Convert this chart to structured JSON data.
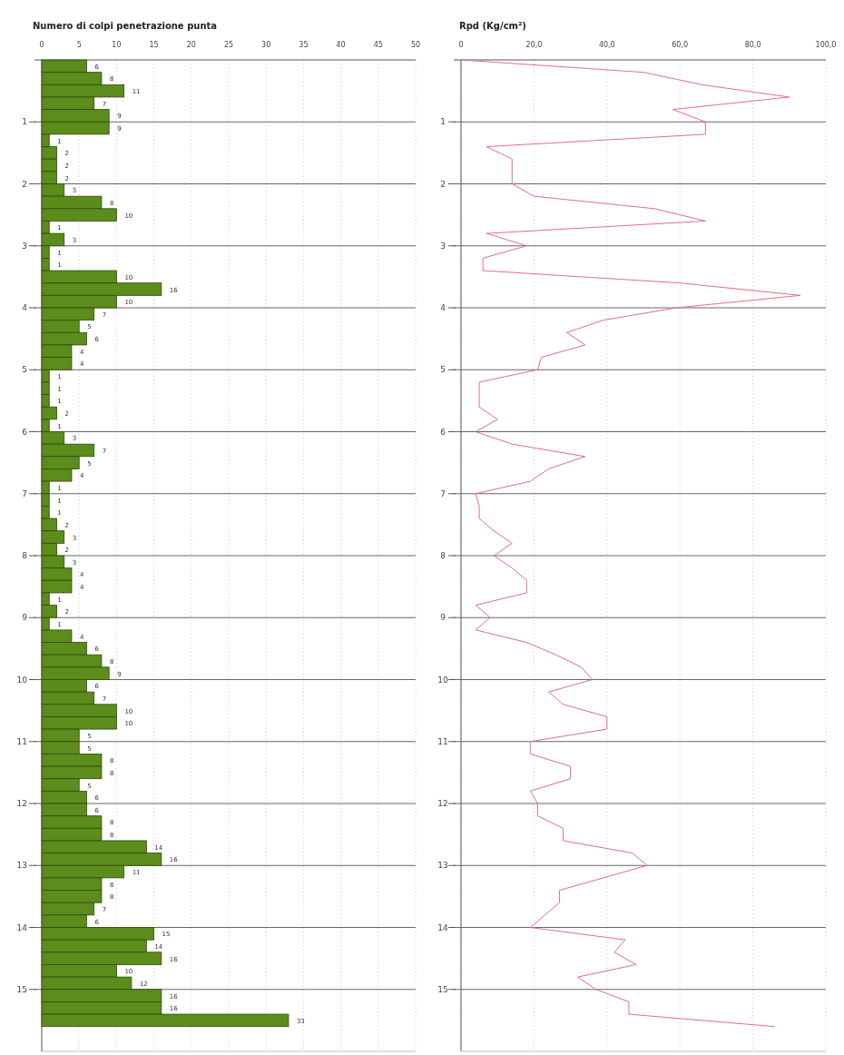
{
  "chart_data": [
    {
      "type": "bar",
      "orientation": "horizontal",
      "title": "Numero di colpi penetrazione punta",
      "x": [
        0.1,
        0.3,
        0.5,
        0.7,
        0.9,
        1.1,
        1.3,
        1.5,
        1.7,
        1.9,
        2.1,
        2.3,
        2.5,
        2.7,
        2.9,
        3.1,
        3.3,
        3.5,
        3.7,
        3.9,
        4.1,
        4.3,
        4.5,
        4.7,
        4.9,
        5.1,
        5.3,
        5.5,
        5.7,
        5.9,
        6.1,
        6.3,
        6.5,
        6.7,
        6.9,
        7.1,
        7.3,
        7.5,
        7.7,
        7.9,
        8.1,
        8.3,
        8.5,
        8.7,
        8.9,
        9.1,
        9.3,
        9.5,
        9.7,
        9.9,
        10.1,
        10.3,
        10.5,
        10.7,
        10.9,
        11.1,
        11.3,
        11.5,
        11.7,
        11.9,
        12.1,
        12.3,
        12.5,
        12.7,
        12.9,
        13.1,
        13.3,
        13.5,
        13.7,
        13.9,
        14.1,
        14.3,
        14.5,
        14.7,
        14.9,
        15.1,
        15.3,
        15.5
      ],
      "values": [
        6,
        8,
        11,
        7,
        9,
        9,
        1,
        2,
        2,
        2,
        3,
        8,
        10,
        1,
        3,
        1,
        1,
        10,
        16,
        10,
        7,
        5,
        6,
        4,
        4,
        1,
        1,
        1,
        2,
        1,
        3,
        7,
        5,
        4,
        1,
        1,
        1,
        2,
        3,
        2,
        3,
        4,
        4,
        1,
        2,
        1,
        4,
        6,
        8,
        9,
        6,
        7,
        10,
        10,
        5,
        5,
        8,
        8,
        5,
        6,
        6,
        8,
        8,
        14,
        16,
        11,
        8,
        8,
        7,
        6,
        15,
        14,
        16,
        10,
        12,
        16,
        16,
        33
      ],
      "color": "#5b8c1c",
      "data_labels": true,
      "xlim": [
        0,
        50
      ],
      "xticks": [
        0,
        5,
        10,
        15,
        20,
        25,
        30,
        35,
        40,
        45,
        50
      ],
      "ylim": [
        16,
        0
      ],
      "yticks": [
        1,
        2,
        3,
        4,
        5,
        6,
        7,
        8,
        9,
        10,
        11,
        12,
        13,
        14,
        15
      ],
      "grid": true
    },
    {
      "type": "line",
      "orientation": "horizontal",
      "title": "Rpd (Kg/cm²)",
      "x": [
        0,
        0.2,
        0.4,
        0.6,
        0.8,
        1,
        1.2,
        1.4,
        1.6,
        1.8,
        2,
        2.2,
        2.4,
        2.6,
        2.8,
        3,
        3.2,
        3.4,
        3.6,
        3.8,
        4,
        4.2,
        4.4,
        4.6,
        4.8,
        5,
        5.2,
        5.4,
        5.6,
        5.8,
        6,
        6.2,
        6.4,
        6.6,
        6.8,
        7,
        7.2,
        7.4,
        7.6,
        7.8,
        8,
        8.2,
        8.4,
        8.6,
        8.8,
        9,
        9.2,
        9.4,
        9.6,
        9.8,
        10,
        10.2,
        10.4,
        10.6,
        10.8,
        11,
        11.2,
        11.4,
        11.6,
        11.8,
        12,
        12.2,
        12.4,
        12.6,
        12.8,
        13,
        13.2,
        13.4,
        13.6,
        13.8,
        14,
        14.2,
        14.4,
        14.6,
        14.8,
        15,
        15.2,
        15.4,
        15.6
      ],
      "values": [
        0,
        50,
        66,
        90,
        58,
        67,
        67,
        7,
        14,
        14,
        14,
        20,
        53,
        67,
        7,
        18,
        6,
        6,
        60,
        93,
        59,
        39,
        29,
        34,
        22,
        21,
        5,
        5,
        5,
        10,
        4,
        14,
        34,
        24,
        19,
        4,
        5,
        5,
        9,
        14,
        9,
        14,
        18,
        18,
        4,
        8,
        4,
        18,
        26,
        33,
        36,
        24,
        28,
        40,
        40,
        19,
        19,
        30,
        30,
        19,
        21,
        21,
        28,
        28,
        47,
        51,
        39,
        27,
        27,
        23,
        19,
        45,
        42,
        48,
        32,
        37,
        46,
        46,
        86
      ],
      "color": "#e0707e",
      "line_style": "solid",
      "xlim": [
        0,
        100
      ],
      "xticks": [
        0,
        {
          "value": 20,
          "label": "20,0"
        },
        {
          "value": 40,
          "label": "40,0"
        },
        {
          "value": 60,
          "label": "60,0"
        },
        {
          "value": 80,
          "label": "80,0"
        },
        {
          "value": 100,
          "label": "100,0"
        }
      ],
      "ylim": [
        16,
        0
      ],
      "yticks": [
        1,
        2,
        3,
        4,
        5,
        6,
        7,
        8,
        9,
        10,
        11,
        12,
        13,
        14,
        15
      ],
      "grid": true
    }
  ]
}
